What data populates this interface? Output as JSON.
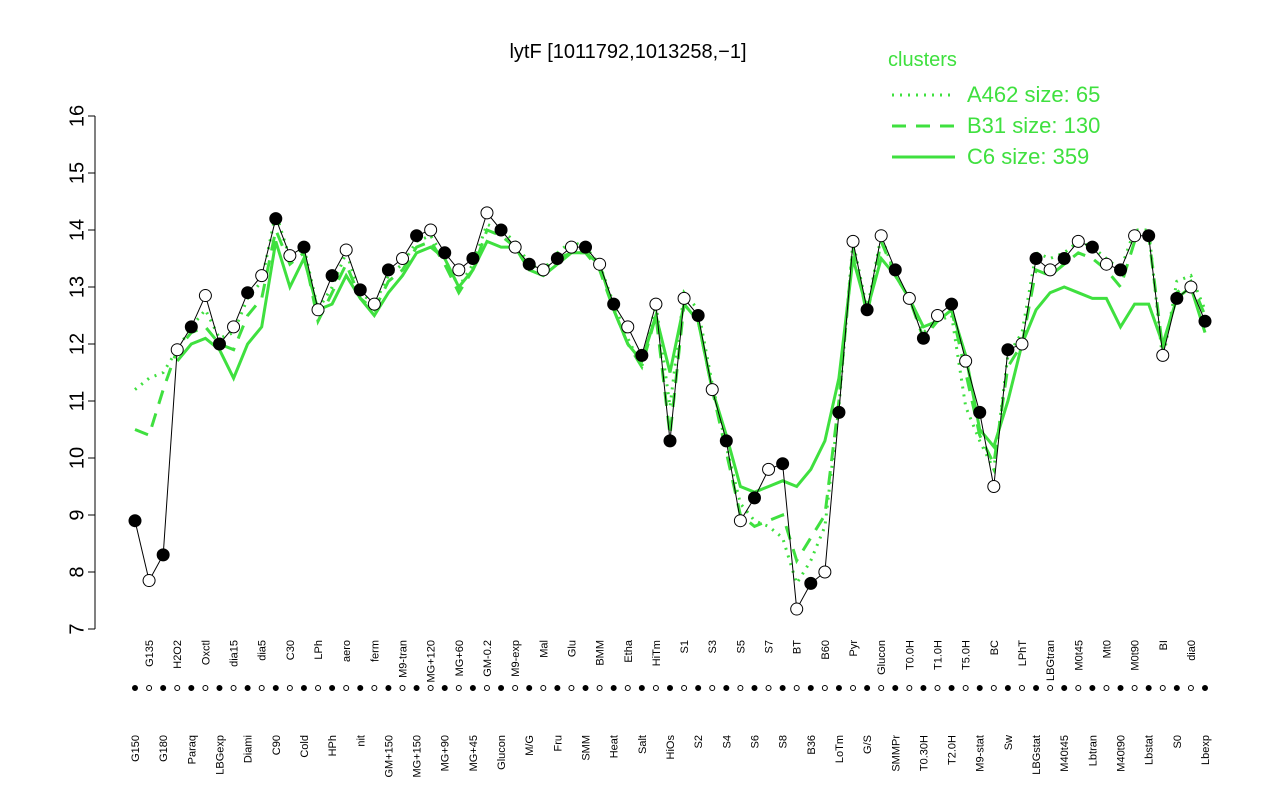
{
  "chart_data": {
    "type": "line",
    "title": "lytF [1011792,1013258,−1]",
    "legend_title": "clusters",
    "legend_position": "top-right",
    "legend_color": "#3fe03f",
    "point_color": "#000000",
    "ylim": [
      7,
      16
    ],
    "yticks": [
      7,
      8,
      9,
      10,
      11,
      12,
      13,
      14,
      15,
      16
    ],
    "categories": [
      "G150",
      "G135",
      "G180",
      "H2O2",
      "Paraq",
      "Oxctl",
      "LBGexp",
      "dia15",
      "Diami",
      "dia5",
      "C90",
      "C30",
      "Cold",
      "LPh",
      "HPh",
      "aero",
      "nit",
      "ferm",
      "GM+150",
      "M9-tran",
      "MG+150",
      "MG+120",
      "MG+90",
      "MG+60",
      "MG+45",
      "GM-0.2",
      "Glucon",
      "M9-exp",
      "M/G",
      "Mal",
      "Fru",
      "Glu",
      "SMM",
      "BMM",
      "Heat",
      "Etha",
      "Salt",
      "HiTm",
      "HiOs",
      "S1",
      "S2",
      "S3",
      "S4",
      "S5",
      "S6",
      "S7",
      "S8",
      "BT",
      "B36",
      "B60",
      "LoTm",
      "Pyr",
      "G/S",
      "Glucon",
      "SMMPr",
      "T0.0H",
      "T0.30H",
      "T1.0H",
      "T2.0H",
      "T5.0H",
      "M9-stat",
      "BC",
      "Sw",
      "LPhT",
      "LBGstat",
      "LBGtran",
      "M40t45",
      "M0t45",
      "Lbtran",
      "Mt0",
      "M40t90",
      "M0t90",
      "Lbstat",
      "BI",
      "S0",
      "dia0",
      "Lbexp"
    ],
    "values": [
      8.9,
      7.85,
      8.3,
      11.9,
      12.3,
      12.85,
      12.0,
      12.3,
      12.9,
      13.2,
      14.2,
      13.55,
      13.7,
      12.6,
      13.2,
      13.65,
      12.95,
      12.7,
      13.3,
      13.5,
      13.9,
      14.0,
      13.6,
      13.3,
      13.5,
      14.3,
      14.0,
      13.7,
      13.4,
      13.3,
      13.5,
      13.7,
      13.7,
      13.4,
      12.7,
      12.3,
      11.8,
      12.7,
      10.3,
      12.8,
      12.5,
      11.2,
      10.3,
      8.9,
      9.3,
      9.8,
      9.9,
      7.35,
      7.8,
      8.0,
      10.8,
      13.8,
      12.6,
      13.9,
      13.3,
      12.8,
      12.1,
      12.5,
      12.7,
      11.7,
      10.8,
      9.5,
      11.9,
      12.0,
      13.5,
      13.3,
      13.5,
      13.8,
      13.7,
      13.4,
      13.3,
      13.9,
      13.9,
      11.8,
      12.8,
      13.0,
      12.4
    ],
    "series": [
      {
        "name": "A462 size: 65",
        "color": "#3fe03f",
        "line_style": "dotted",
        "values": [
          11.2,
          11.4,
          11.5,
          11.9,
          12.3,
          12.6,
          12.1,
          12.2,
          12.8,
          13.1,
          14.3,
          13.5,
          13.7,
          12.6,
          13.0,
          13.6,
          12.9,
          12.7,
          13.2,
          13.4,
          13.8,
          13.9,
          13.5,
          13.0,
          13.4,
          14.1,
          14.0,
          13.8,
          13.4,
          13.3,
          13.6,
          13.8,
          13.7,
          13.4,
          12.7,
          12.1,
          11.6,
          12.7,
          10.9,
          12.9,
          12.6,
          11.3,
          10.2,
          9.2,
          8.9,
          8.8,
          8.6,
          7.8,
          8.2,
          8.8,
          10.9,
          13.8,
          12.6,
          13.9,
          13.2,
          12.8,
          12.2,
          12.4,
          12.5,
          10.9,
          10.3,
          9.8,
          11.8,
          12.2,
          13.6,
          13.5,
          13.6,
          13.8,
          13.7,
          13.5,
          13.3,
          14.0,
          14.0,
          11.7,
          13.1,
          13.2,
          12.6
        ]
      },
      {
        "name": "B31 size: 130",
        "color": "#3fe03f",
        "line_style": "dashed",
        "values": [
          10.5,
          10.4,
          11.2,
          11.9,
          12.2,
          12.3,
          12.0,
          11.9,
          12.5,
          12.8,
          14.0,
          13.4,
          13.6,
          12.4,
          12.9,
          13.4,
          12.8,
          12.6,
          13.1,
          13.3,
          13.7,
          13.8,
          13.4,
          12.9,
          13.3,
          14.0,
          13.9,
          13.7,
          13.3,
          13.3,
          13.5,
          13.6,
          13.6,
          13.3,
          12.6,
          12.0,
          11.6,
          12.5,
          10.4,
          12.7,
          12.4,
          11.2,
          10.1,
          9.0,
          8.8,
          8.9,
          9.0,
          8.2,
          8.6,
          9.0,
          11.0,
          13.7,
          12.5,
          13.8,
          13.2,
          12.8,
          12.1,
          12.4,
          12.6,
          11.5,
          10.4,
          9.9,
          11.6,
          12.0,
          13.3,
          13.2,
          13.4,
          13.6,
          13.5,
          13.3,
          13.0,
          13.8,
          13.9,
          11.9,
          12.9,
          13.1,
          12.5
        ]
      },
      {
        "name": "C6 size: 359",
        "color": "#3fe03f",
        "line_style": "solid",
        "values": [
          null,
          null,
          null,
          11.7,
          12.0,
          12.1,
          11.9,
          11.4,
          12.0,
          12.3,
          13.8,
          13.0,
          13.5,
          12.6,
          12.7,
          13.2,
          12.8,
          12.5,
          12.9,
          13.2,
          13.6,
          13.7,
          13.5,
          13.0,
          13.3,
          13.8,
          13.7,
          13.7,
          13.3,
          13.2,
          13.4,
          13.6,
          13.6,
          13.4,
          12.6,
          12.0,
          11.7,
          12.5,
          11.5,
          12.7,
          12.4,
          11.2,
          10.4,
          9.5,
          9.4,
          9.5,
          9.6,
          9.5,
          9.8,
          10.3,
          11.4,
          13.5,
          12.6,
          13.5,
          13.2,
          12.8,
          12.3,
          12.4,
          12.6,
          11.8,
          10.5,
          10.2,
          11.0,
          12.0,
          12.6,
          12.9,
          13.0,
          12.9,
          12.8,
          12.8,
          12.3,
          12.7,
          12.7,
          12.0,
          12.8,
          13.0,
          12.2
        ]
      }
    ]
  }
}
